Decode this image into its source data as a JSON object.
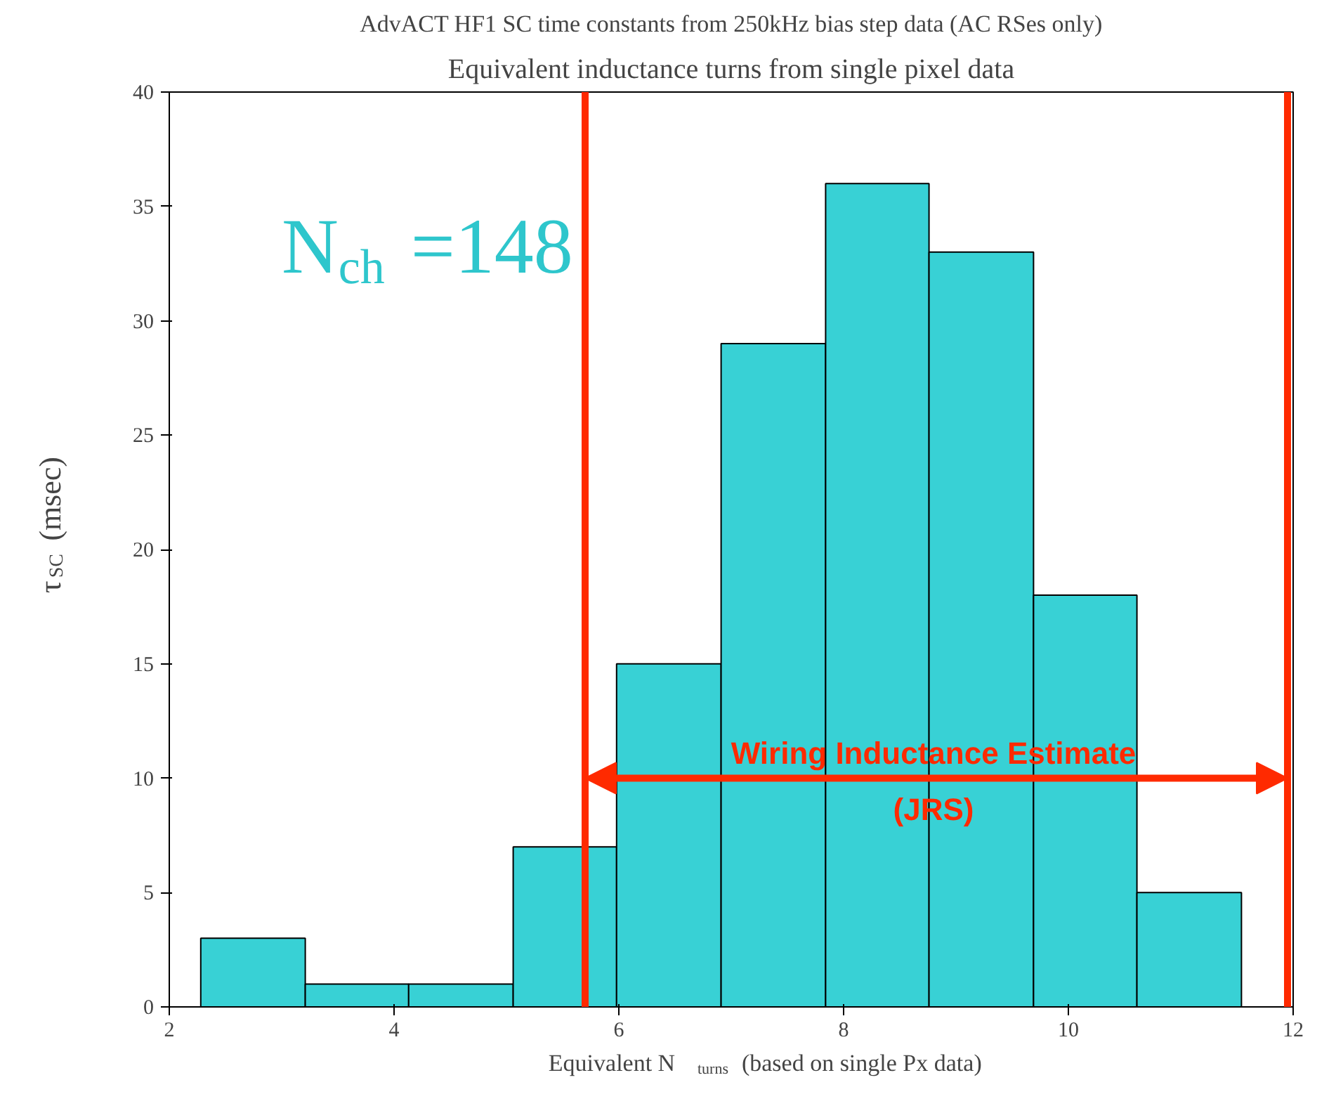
{
  "chart_data": {
    "type": "histogram",
    "title": "AdvACT HF1 SC time constants from 250kHz bias step data (AC RSes only)",
    "subtitle": "Equivalent inductance turns from single pixel data",
    "xlabel": "Equivalent N$_{turns}$ (based on single Px data)",
    "ylabel": "τ$_{SC}$ (msec)",
    "bins": [
      2.28,
      3.21,
      4.13,
      5.06,
      5.98,
      6.91,
      7.84,
      8.76,
      9.69,
      10.61,
      11.54
    ],
    "values": [
      3,
      1,
      1,
      7,
      15,
      29,
      36,
      33,
      18,
      5
    ],
    "color": "#38d1d5",
    "xlim": [
      2,
      12
    ],
    "ylim": [
      0,
      40
    ],
    "xticks": [
      2,
      4,
      6,
      8,
      10,
      12
    ],
    "yticks": [
      0,
      5,
      10,
      15,
      20,
      25,
      30,
      35,
      40
    ],
    "grid": false,
    "ref_lines": [
      {
        "axis": "x",
        "value": 5.7,
        "label": null,
        "color": "#ff2a00"
      },
      {
        "axis": "x",
        "value": 11.95,
        "label": null,
        "color": "#ff2a00"
      }
    ],
    "annotations": [
      "N$_{ch}$ =148",
      {
        "text": "Wiring Inductance Estimate\n(JRS)",
        "x": 8.8,
        "y": 10
      }
    ]
  }
}
